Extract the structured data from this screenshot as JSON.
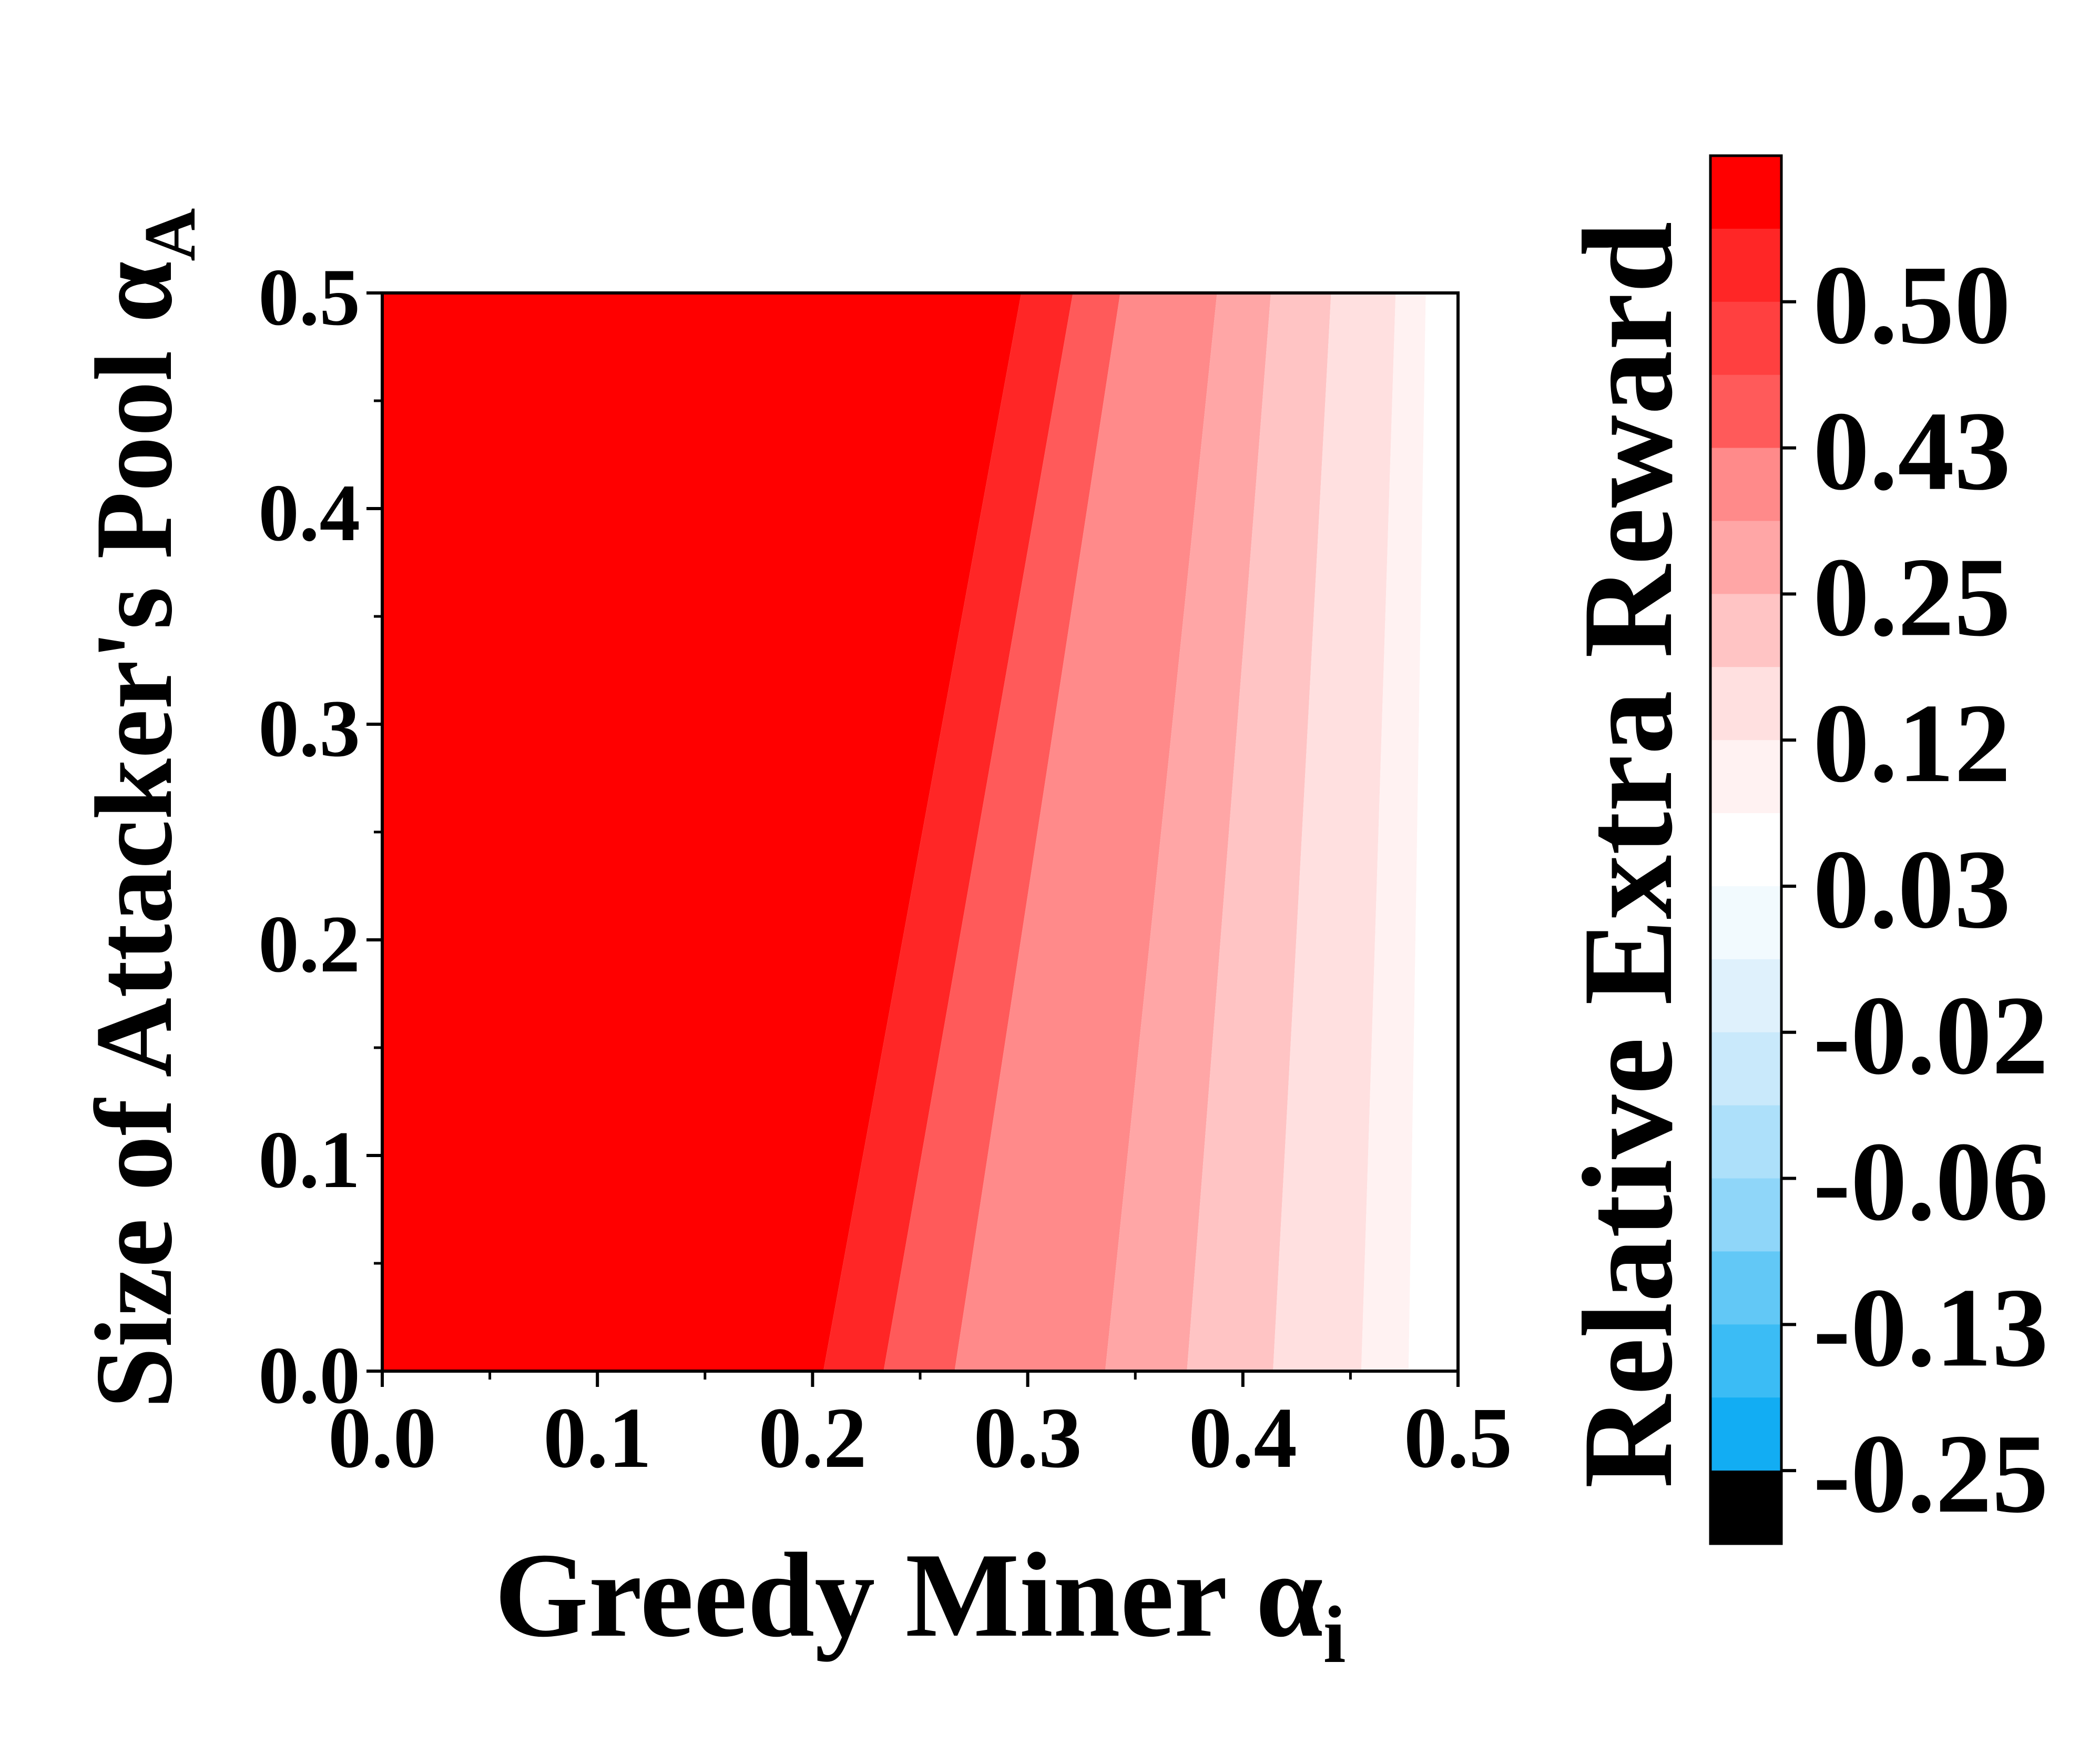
{
  "chart_data": {
    "type": "heatmap",
    "subtype": "filled-contour",
    "xlabel": "Greedy Miner α",
    "xlabel_sub": "i",
    "ylabel": "Size of Attacker's Pool α",
    "ylabel_sub": "A",
    "xlim": [
      0.0,
      0.5
    ],
    "ylim": [
      0.0,
      0.5
    ],
    "xticks": [
      "0.0",
      "0.1",
      "0.2",
      "0.3",
      "0.4",
      "0.5"
    ],
    "yticks": [
      "0.0",
      "0.1",
      "0.2",
      "0.3",
      "0.4",
      "0.5"
    ],
    "colorbar": {
      "label": "Relative Extra Reward",
      "tick_labels": [
        "0.50",
        "0.43",
        "0.25",
        "0.12",
        "0.03",
        "-0.02",
        "-0.06",
        "-0.13",
        "-0.25"
      ],
      "bands_top_to_bottom": [
        "#ff0000",
        "#ff2626",
        "#ff4040",
        "#ff5a5a",
        "#ff8a8a",
        "#ffa6a6",
        "#ffc4c4",
        "#ffe0e0",
        "#fff2f2",
        "#ffffff",
        "#f2fafe",
        "#dff1fc",
        "#c9e9fb",
        "#ade0fa",
        "#8fd6f9",
        "#62c8f6",
        "#3bbcf5",
        "#12adf3",
        "#000000"
      ]
    },
    "contour_boundaries": [
      {
        "x_at_y0": 0.205,
        "x_at_y05": 0.297,
        "color_left": "#ff0000",
        "color_right": "#ff2626"
      },
      {
        "x_at_y0": 0.233,
        "x_at_y05": 0.321,
        "color_left": "#ff2626",
        "color_right": "#ff5a5a"
      },
      {
        "x_at_y0": 0.266,
        "x_at_y05": 0.343,
        "color_left": "#ff5a5a",
        "color_right": "#ff8a8a"
      },
      {
        "x_at_y0": 0.336,
        "x_at_y05": 0.388,
        "color_left": "#ff8a8a",
        "color_right": "#ffa6a6"
      },
      {
        "x_at_y0": 0.374,
        "x_at_y05": 0.413,
        "color_left": "#ffa6a6",
        "color_right": "#ffc4c4"
      },
      {
        "x_at_y0": 0.414,
        "x_at_y05": 0.441,
        "color_left": "#ffc4c4",
        "color_right": "#ffe0e0"
      },
      {
        "x_at_y0": 0.455,
        "x_at_y05": 0.471,
        "color_left": "#ffe0e0",
        "color_right": "#fff2f2"
      },
      {
        "x_at_y0": 0.477,
        "x_at_y05": 0.485,
        "color_left": "#fff2f2",
        "color_right": "#ffffff"
      }
    ]
  }
}
